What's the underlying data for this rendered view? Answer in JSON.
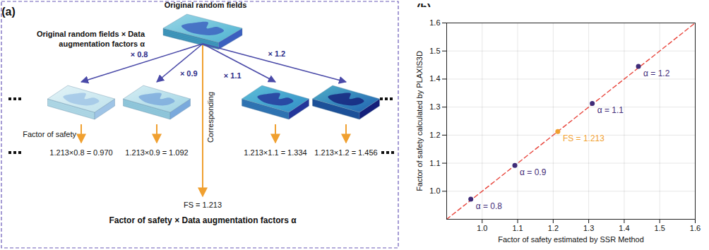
{
  "diagram": {
    "panel_label": "(a)",
    "top_title": "Original random fields",
    "side_label": "Original random fields × Data augmentation factors α",
    "factors": [
      {
        "label": "× 0.8",
        "fs_text": "1.213×0.8 = 0.970"
      },
      {
        "label": "× 0.9",
        "fs_text": "1.213×0.9 = 1.092"
      },
      {
        "label": "× 1.1",
        "fs_text": "1.213×1.1 = 1.334"
      },
      {
        "label": "× 1.2",
        "fs_text": "1.213×1.2 = 1.456"
      }
    ],
    "center_label": "Corresponding",
    "fs_row_title": "Factor of safety",
    "center_fs": "FS = 1.213",
    "caption": "Factor of safety × Data augmentation factors α"
  },
  "chart_data": {
    "type": "scatter",
    "panel_label": "(b)",
    "xlabel": "Factor of safety estimated by SSR Method",
    "ylabel": "Factor of safety calculated by PLAXIS3D",
    "xlim": [
      0.9,
      1.6
    ],
    "ylim": [
      0.9,
      1.6
    ],
    "xticks": [
      {
        "value": 1,
        "label": "1.0"
      },
      1.1,
      1.2,
      1.3,
      1.4,
      1.5,
      1.6
    ],
    "yticks": [
      {
        "value": 1,
        "label": "1.0"
      },
      1.1,
      1.2,
      1.3,
      1.4,
      1.5,
      1.6
    ],
    "grid": true,
    "series": [
      {
        "type": "line",
        "line_style": "dashed",
        "color": "#e8453c",
        "x": [
          0.9,
          1.6
        ],
        "values": [
          0.9,
          1.6
        ]
      },
      {
        "type": "scatter",
        "marker": "circle",
        "x": [
          0.968,
          1.092,
          1.213,
          1.31,
          1.44
        ],
        "values": [
          0.972,
          1.092,
          1.213,
          1.313,
          1.445
        ],
        "colors": [
          "#3f2b78",
          "#3f2b78",
          "#f0a030",
          "#3f2b78",
          "#3f2b78"
        ],
        "labels": [
          "α = 0.8",
          "α = 0.9",
          "FS = 1.213",
          "α = 1.1",
          "α = 1.2"
        ]
      }
    ]
  }
}
